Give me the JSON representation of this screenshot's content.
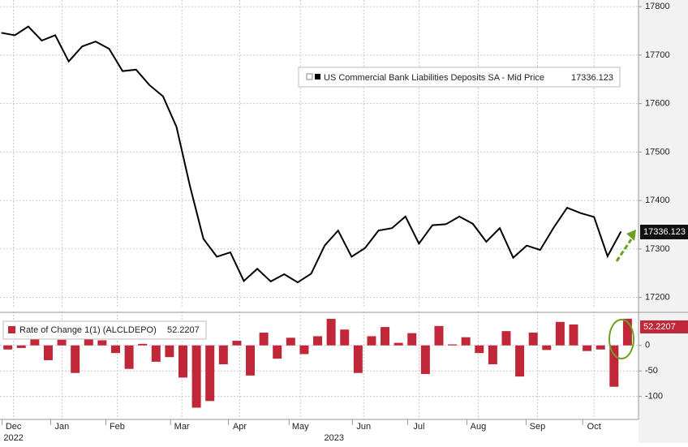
{
  "chart_data": [
    {
      "type": "line",
      "series": [
        {
          "name": "US Commercial Bank Liabilities Deposits SA - Mid Price",
          "color": "#000000",
          "values": [
            17746,
            17741,
            17759,
            17730,
            17741,
            17687,
            17718,
            17728,
            17713,
            17667,
            17670,
            17638,
            17615,
            17552,
            17430,
            17321,
            17284,
            17293,
            17234,
            17259,
            17233,
            17248,
            17231,
            17249,
            17307,
            17338,
            17284,
            17302,
            17338,
            17343,
            17367,
            17311,
            17349,
            17351,
            17367,
            17352,
            17315,
            17343,
            17282,
            17307,
            17298,
            17344,
            17385,
            17374,
            17366,
            17285,
            17336.123
          ]
        }
      ],
      "x": [
        0,
        1,
        2,
        3,
        4,
        5,
        6,
        7,
        8,
        9,
        10,
        11,
        12,
        13,
        14,
        15,
        16,
        17,
        18,
        19,
        20,
        21,
        22,
        23,
        24,
        25,
        26,
        27,
        28,
        29,
        30,
        31,
        32,
        33,
        34,
        35,
        36,
        37,
        38,
        39,
        40,
        41,
        42,
        43,
        44,
        45,
        46
      ],
      "xlim": [
        -0.1,
        47.3
      ],
      "ylim": [
        17181,
        17807
      ],
      "yticks": [
        17200,
        17300,
        17400,
        17500,
        17600,
        17700,
        17800
      ],
      "grid": true
    },
    {
      "type": "bar",
      "series": [
        {
          "name": "Rate of Change 1(1) (ALCLDEPO)",
          "color": "#c0283a",
          "values": [
            -8,
            -5,
            18,
            -29,
            11,
            -54,
            31,
            10,
            -15,
            -46,
            3,
            -32,
            -23,
            -63,
            -122,
            -109,
            -37,
            9,
            -59,
            25,
            -26,
            15,
            -17,
            18,
            52,
            31,
            -54,
            18,
            36,
            5,
            24,
            -56,
            38,
            2,
            16,
            -15,
            -37,
            28,
            -61,
            25,
            -9,
            46,
            41,
            -11,
            -8,
            -81,
            52.2207
          ]
        }
      ],
      "x": [
        0,
        1,
        2,
        3,
        4,
        5,
        6,
        7,
        8,
        9,
        10,
        11,
        12,
        13,
        14,
        15,
        16,
        17,
        18,
        19,
        20,
        21,
        22,
        23,
        24,
        25,
        26,
        27,
        28,
        29,
        30,
        31,
        32,
        33,
        34,
        35,
        36,
        37,
        38,
        39,
        40,
        41,
        42,
        43,
        44,
        45,
        46
      ],
      "xlim": [
        -0.1,
        47.3
      ],
      "ylim": [
        -145,
        60
      ],
      "yticks": [
        0,
        -50,
        -100
      ],
      "xticks": [
        {
          "value": 0.9,
          "label": "Dec"
        },
        {
          "value": 4.5,
          "label": "Jan"
        },
        {
          "value": 8.6,
          "label": "Feb"
        },
        {
          "value": 13.4,
          "label": "Mar"
        },
        {
          "value": 17.7,
          "label": "Apr"
        },
        {
          "value": 22.2,
          "label": "May"
        },
        {
          "value": 26.9,
          "label": "Jun"
        },
        {
          "value": 31,
          "label": "Jul"
        },
        {
          "value": 35.4,
          "label": "Aug"
        },
        {
          "value": 39.8,
          "label": "Sep"
        },
        {
          "value": 44,
          "label": "Oct"
        }
      ],
      "year_labels": [
        {
          "value": 0.9,
          "label": "2022"
        },
        {
          "value": 24.7,
          "label": "2023"
        }
      ],
      "grid": true
    }
  ]
}
